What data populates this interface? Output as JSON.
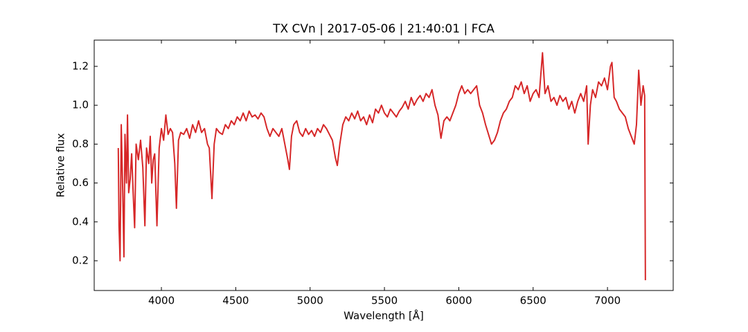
{
  "chart_data": {
    "type": "line",
    "title": "TX CVn | 2017-05-06 | 21:40:01 | FCA",
    "x_label": "Wavelength [Å]",
    "y_label": "Relative flux",
    "xlim": [
      3548,
      7442
    ],
    "ylim": [
      0.047,
      1.335
    ],
    "xticks": [
      4000,
      4500,
      5000,
      5500,
      6000,
      6500,
      7000
    ],
    "yticks": [
      0.2,
      0.4,
      0.6,
      0.8,
      {
        "value": 1,
        "label": "1.0"
      },
      1.2
    ],
    "grid": false,
    "x": [
      3710,
      3715,
      3722,
      3730,
      3740,
      3748,
      3755,
      3765,
      3772,
      3780,
      3790,
      3800,
      3810,
      3820,
      3830,
      3845,
      3860,
      3875,
      3889,
      3900,
      3915,
      3925,
      3935,
      3945,
      3955,
      3970,
      3985,
      4000,
      4015,
      4030,
      4045,
      4060,
      4075,
      4090,
      4101,
      4115,
      4130,
      4150,
      4170,
      4190,
      4210,
      4230,
      4250,
      4270,
      4290,
      4310,
      4322,
      4340,
      4355,
      4370,
      4390,
      4410,
      4430,
      4450,
      4470,
      4490,
      4510,
      4530,
      4550,
      4570,
      4590,
      4610,
      4630,
      4650,
      4670,
      4690,
      4710,
      4730,
      4750,
      4770,
      4790,
      4810,
      4830,
      4850,
      4861,
      4875,
      4890,
      4910,
      4930,
      4950,
      4970,
      4990,
      5010,
      5030,
      5050,
      5070,
      5090,
      5110,
      5130,
      5150,
      5170,
      5183,
      5200,
      5220,
      5240,
      5260,
      5280,
      5300,
      5320,
      5340,
      5360,
      5380,
      5400,
      5420,
      5440,
      5460,
      5480,
      5500,
      5520,
      5540,
      5560,
      5580,
      5600,
      5620,
      5640,
      5660,
      5680,
      5700,
      5720,
      5740,
      5760,
      5780,
      5800,
      5820,
      5840,
      5860,
      5880,
      5900,
      5920,
      5940,
      5960,
      5980,
      6000,
      6020,
      6040,
      6060,
      6080,
      6100,
      6120,
      6140,
      6160,
      6180,
      6200,
      6220,
      6240,
      6260,
      6280,
      6300,
      6320,
      6340,
      6360,
      6380,
      6400,
      6420,
      6440,
      6460,
      6480,
      6500,
      6520,
      6540,
      6563,
      6580,
      6600,
      6620,
      6640,
      6660,
      6680,
      6700,
      6720,
      6740,
      6760,
      6780,
      6800,
      6820,
      6840,
      6860,
      6870,
      6885,
      6900,
      6920,
      6940,
      6960,
      6980,
      7000,
      7020,
      7030,
      7045,
      7060,
      7080,
      7100,
      7120,
      7140,
      7160,
      7180,
      7195,
      7210,
      7225,
      7240,
      7250,
      7255
    ],
    "series": [
      {
        "name": "flux",
        "color": "#d62728",
        "values": [
          0.78,
          0.38,
          0.2,
          0.9,
          0.55,
          0.22,
          0.85,
          0.6,
          0.95,
          0.55,
          0.62,
          0.75,
          0.55,
          0.37,
          0.8,
          0.72,
          0.82,
          0.68,
          0.38,
          0.78,
          0.7,
          0.84,
          0.6,
          0.72,
          0.75,
          0.38,
          0.78,
          0.88,
          0.82,
          0.95,
          0.85,
          0.88,
          0.86,
          0.7,
          0.47,
          0.82,
          0.86,
          0.85,
          0.88,
          0.83,
          0.9,
          0.86,
          0.92,
          0.86,
          0.88,
          0.8,
          0.78,
          0.52,
          0.8,
          0.88,
          0.86,
          0.85,
          0.9,
          0.88,
          0.92,
          0.9,
          0.94,
          0.92,
          0.96,
          0.92,
          0.97,
          0.94,
          0.95,
          0.93,
          0.96,
          0.94,
          0.88,
          0.84,
          0.88,
          0.86,
          0.84,
          0.88,
          0.8,
          0.72,
          0.67,
          0.84,
          0.9,
          0.92,
          0.86,
          0.84,
          0.88,
          0.85,
          0.87,
          0.84,
          0.88,
          0.86,
          0.9,
          0.88,
          0.85,
          0.82,
          0.73,
          0.69,
          0.8,
          0.9,
          0.94,
          0.92,
          0.96,
          0.93,
          0.97,
          0.92,
          0.94,
          0.9,
          0.95,
          0.91,
          0.98,
          0.96,
          1.0,
          0.96,
          0.94,
          0.98,
          0.96,
          0.94,
          0.97,
          0.99,
          1.02,
          0.98,
          1.04,
          1.0,
          1.03,
          1.05,
          1.02,
          1.06,
          1.04,
          1.08,
          1.0,
          0.95,
          0.83,
          0.92,
          0.94,
          0.92,
          0.96,
          1.0,
          1.06,
          1.1,
          1.06,
          1.08,
          1.06,
          1.08,
          1.1,
          1.0,
          0.96,
          0.9,
          0.85,
          0.8,
          0.82,
          0.86,
          0.92,
          0.96,
          0.98,
          1.02,
          1.04,
          1.1,
          1.08,
          1.12,
          1.06,
          1.1,
          1.02,
          1.06,
          1.08,
          1.04,
          1.27,
          1.06,
          1.1,
          1.02,
          1.04,
          1.0,
          1.05,
          1.02,
          1.04,
          0.98,
          1.02,
          0.96,
          1.02,
          1.06,
          1.02,
          1.1,
          0.8,
          1.0,
          1.08,
          1.04,
          1.12,
          1.1,
          1.14,
          1.08,
          1.2,
          1.22,
          1.04,
          1.02,
          0.98,
          0.96,
          0.94,
          0.88,
          0.84,
          0.8,
          0.9,
          1.18,
          1.0,
          1.1,
          1.05,
          0.1
        ]
      }
    ]
  }
}
